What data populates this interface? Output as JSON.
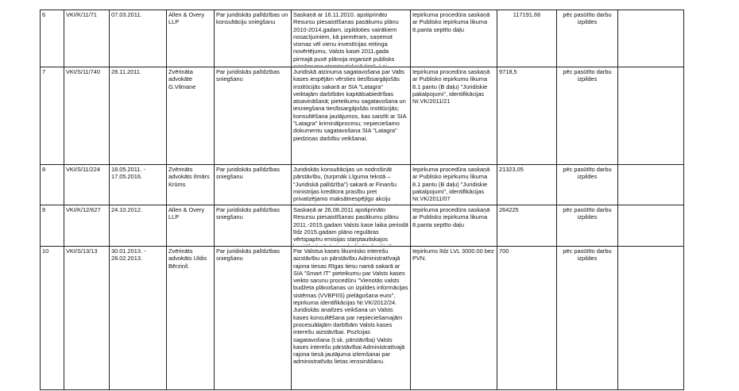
{
  "rows": [
    {
      "nr": "6",
      "id": "VKI/K/11/71",
      "date": "07.03.2011.",
      "provider": "Allen & Overy LLP",
      "subject": "Par juridiskās palīdzības un konsultāciju sniegšanu",
      "description": "Saskaņā ar 16.11.2010. apstiprināto Resursu piesaistīšanas pasākumu plānu 2010-2014.gadam, izpildoties vairākiem nosacījumiem, kā piemēram, saņemot vismaz vēl vienu investīcijas reitinga novērtējumu, Valsts kasei 2011.gada pirmajā pusē plānoja organizē publisks aizņēmums starptautiskajā tirgū. Lai nodrošinātu kvalitatīvu un sekmīgu kārtējo",
      "procedure": "Iepirkuma procedūra saskaņā ar Publisko iepirkuma likuma 8.panta septīto daļu",
      "amount": "117191,66",
      "payment": "pēc pasūtīto darbu izpildes",
      "note": ""
    },
    {
      "nr": "7",
      "id": "VKI/S/11/740",
      "date": "28.11.2011.",
      "provider": "Zvērināta advokāte G.Vilmane",
      "subject": "Par juridiskās palīdzības sniegšanu",
      "description": "Juridiskā atzinuma sagatavošana par Valts kases iespējām vērsties tiesībsargājošās institūcijās sakarā ar SIA \"Latagra\" veiktajām darbībām kapitālsabiedrības atsavināšanā; pieteikumu sagatavošana un iesniegšana tiesībsargājošās institūcijās; konsultēšana jautājumos, kas saistīti ar SIA \"Latagra\" kriminālprocesu; nepieciešamo dokumentu sagatavošana SIA \"Latagra\" piedziņas darbību veikšanai.",
      "procedure": "Iepirkuma procedūra saskaņā ar Publisko iepirkumu likuma 8.1 pantu (B daļu) \"Juridiskie pakalpojumi\", identifikācijas Nr.VK/2011/21",
      "amount": "9718,5",
      "payment": "pēc pasūtīto darbu izpildes",
      "note": ""
    },
    {
      "nr": "8",
      "id": "VKI/S/11/224",
      "date": "18.05.2011. - 17.05.2016.",
      "provider": "Zvērināts advokāts Ilmārs Krūms",
      "subject": "Par juridiskās palīdzības sniegšanu",
      "description": "Juridiskās konsultācijas un nodrošināt pārstāvību, (turpmāk Līguma tekstā – \"Juridiskā palīdzība\") sakarā ar Finanšu ministrijas kreditora prasību pret privatizējamo maksātnespējīgo akciju sabiedrību „Latvijas Nafta\", par pārstāvību kreditoru sapulcēs un, ja nepieciešams tiesā, kas",
      "procedure": "Iepirkuma procedūra saskaņā ar Publisko iepirkumu likuma 8.1 pantu (B daļu) \"Juridiskie pakalpojumi\", identifikācijas Nr.VK/2011/07",
      "amount": "21323,05",
      "payment": "pēc pasūtīto darbu izpildes",
      "note": ""
    },
    {
      "nr": "9",
      "id": "VKI/K/12/627",
      "date": "24.10.2012.",
      "provider": "Allen & Overy LLP",
      "subject": "Par juridiskās palīdzības sniegšanu",
      "description": "Saskaņā ar 26.08.2011 apstiprināto Resursu piesaistīšanas pasākumu plānu 2011.-2015.gadam Valsts kase laika periodā līdz 2015.gadam plāno regulāras vērtspapīru emisijas starptautiskajos kapitāla tirgū. Lai nodrošinātu kvalitatīvu un sekmīgu kārtējo",
      "procedure": "Iepirkuma procedūra saskaņā ar Publisko iepirkuma likuma 8.panta septīto daļu",
      "amount": "264225",
      "payment": "pēc pasūtīto darbu izpildes",
      "note": ""
    },
    {
      "nr": "10",
      "id": "VKI/S/13/13",
      "date": "30.01.2013. - 28.02.2013.",
      "provider": "Zvērināts advokāts Uldis Bērziņš",
      "subject": "Par juridiskās palīdzības sniegšanu",
      "description": "Par Valstsa kases likumisko interešu aizstāvību un pārstāvību Administratīvajā rajona tiesas Rīgas tiesu namā sakarā ar SIA \"Smart IT\" pieteikumu par Valsts kases veikto sarunu procedūru \"Vienotās valsts budžeta plānošanas un izpildes informācijas sistēmas (VVBPIIS) pielāgošana euro\", iepirkuma identifikācijas Nr.VK/2012/24. Juridiskās analīzes veikšana un Valsts kases konsultēšana par nepieciešamajām procesuālajām darbībām Valsts kases interešu aizstāvībai. Pozīcijas sagatavošana (t.sk. pārstāvība) Valsts kases interešu pārstāvībai Administratīvajā rajona tiesā jautājuma izlemšanai par administratīvās lietas ierosināšanu.",
      "procedure": "Iepirkums līdz LVL 3000.00 bez PVN.",
      "amount": "700",
      "payment": "pēc pasūtīto darbu izpildes",
      "note": ""
    }
  ]
}
